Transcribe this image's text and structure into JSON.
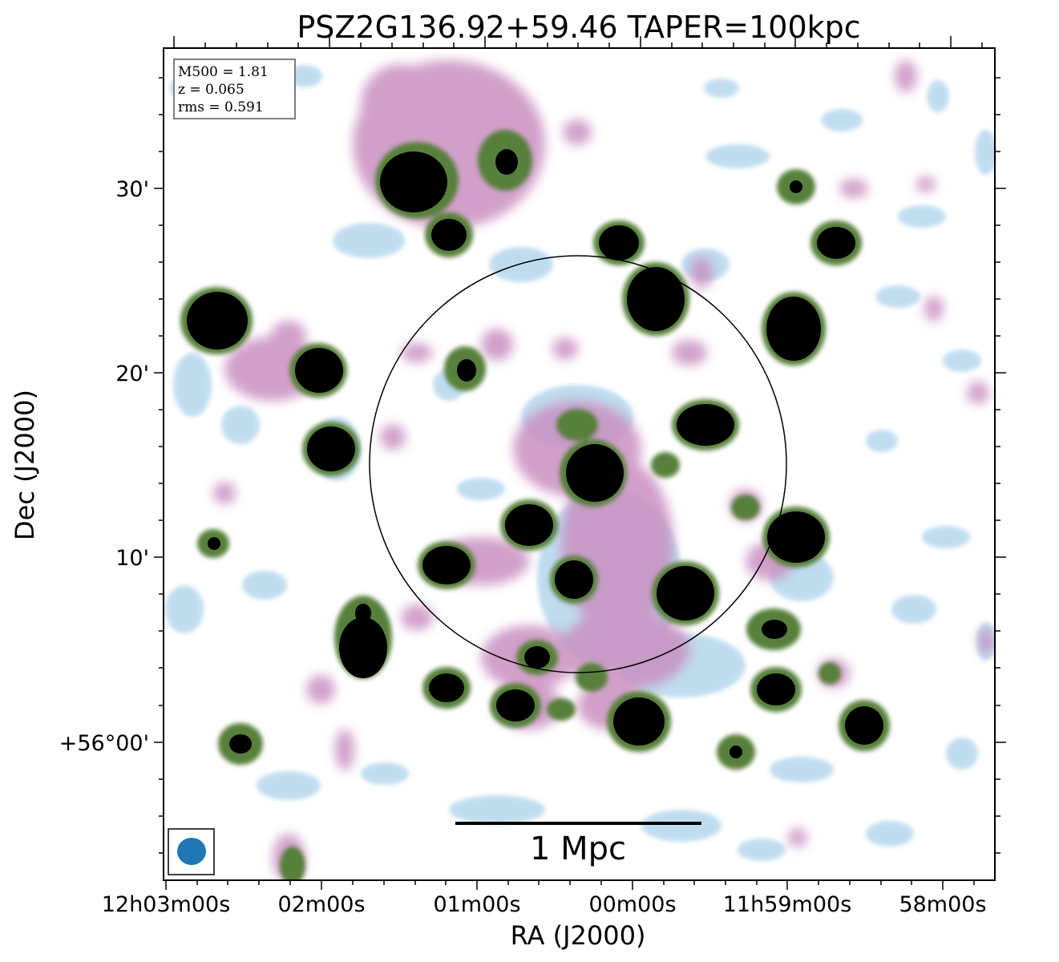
{
  "figure": {
    "title": "PSZ2G136.92+59.46 TAPER=100kpc",
    "xlabel": "RA (J2000)",
    "ylabel": "Dec (J2000)",
    "x_tick_labels": [
      "12h03m00s",
      "02m00s",
      "01m00s",
      "00m00s",
      "11h59m00s",
      "58m00s"
    ],
    "y_tick_labels": [
      "30'",
      "20'",
      "10'",
      "+56°00'"
    ],
    "info_box": {
      "line1": "M500 = 1.81",
      "line2": "z = 0.065",
      "line3": "rms = 0.591"
    },
    "scale_bar_label": "1 Mpc",
    "colors": {
      "faint": "#b9d9ee",
      "pink": "#c98fc1",
      "olive": "#56803a",
      "core": "#000000",
      "beam": "#1f77b4"
    }
  }
}
